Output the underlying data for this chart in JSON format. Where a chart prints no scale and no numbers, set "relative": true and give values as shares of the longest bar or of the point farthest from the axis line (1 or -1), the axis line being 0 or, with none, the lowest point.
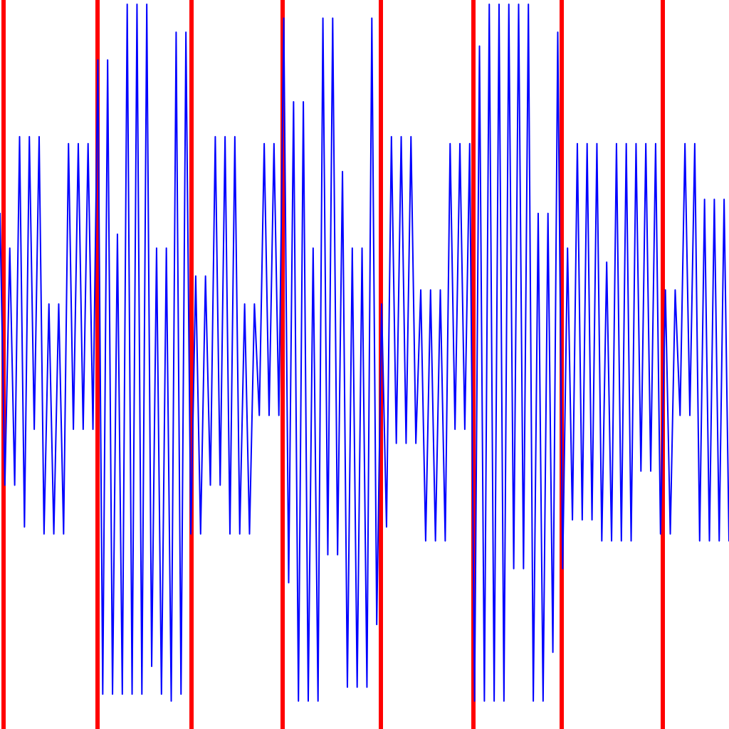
{
  "chart_data": {
    "type": "line",
    "relative": true,
    "categories": [
      null,
      null,
      null,
      null,
      null,
      null,
      null,
      null,
      null,
      null,
      null,
      null,
      null,
      null,
      null,
      null,
      null,
      null,
      null,
      null,
      null,
      null,
      null,
      null,
      null,
      null,
      null,
      null,
      null,
      null,
      null,
      null,
      null,
      null,
      null,
      null,
      null,
      null,
      null,
      null,
      null,
      null,
      null,
      null,
      null,
      null,
      null,
      null,
      null,
      null,
      null,
      null,
      null,
      null,
      null,
      null,
      null,
      null,
      null,
      null,
      null,
      null,
      null,
      null,
      null,
      null,
      null,
      null,
      null,
      null,
      null,
      null,
      null,
      null,
      null,
      null,
      null,
      null,
      null,
      null,
      null,
      null,
      null,
      null,
      null,
      null,
      null,
      null,
      null,
      null,
      null,
      null,
      null,
      null,
      null,
      null,
      null,
      null,
      null,
      null,
      null,
      null,
      null,
      null,
      null,
      null,
      null,
      null,
      null,
      null,
      null,
      null,
      null,
      null,
      null,
      null,
      null,
      null,
      null,
      null,
      null,
      null,
      null,
      null,
      null,
      null,
      null,
      null,
      null,
      null,
      null,
      null,
      null,
      null,
      null,
      null,
      null,
      null,
      null,
      null,
      null,
      null,
      null,
      null,
      null,
      null,
      null,
      null,
      null,
      null
    ],
    "series": [
      {
        "color": "#0000ff",
        "values": [
          0.7,
          0.31,
          0.65,
          0.31,
          0.81,
          0.25,
          0.81,
          0.39,
          0.81,
          0.24,
          0.57,
          0.24,
          0.57,
          0.24,
          0.8,
          0.39,
          0.8,
          0.39,
          0.8,
          0.39,
          0.92,
          0.01,
          0.92,
          0.01,
          0.67,
          0.01,
          1.0,
          0.01,
          1.0,
          0.01,
          1.0,
          0.05,
          0.65,
          0.01,
          0.65,
          0.0,
          0.96,
          0.01,
          0.96,
          0.24,
          0.61,
          0.24,
          0.61,
          0.31,
          0.81,
          0.31,
          0.81,
          0.24,
          0.81,
          0.24,
          0.57,
          0.24,
          0.57,
          0.41,
          0.8,
          0.41,
          0.8,
          0.41,
          0.98,
          0.17,
          0.86,
          0.0,
          0.86,
          0.0,
          0.65,
          0.0,
          0.98,
          0.21,
          0.98,
          0.21,
          0.76,
          0.02,
          0.65,
          0.02,
          0.65,
          0.02,
          0.98,
          0.11,
          0.57,
          0.25,
          0.81,
          0.37,
          0.81,
          0.37,
          0.81,
          0.37,
          0.59,
          0.23,
          0.59,
          0.23,
          0.59,
          0.23,
          0.8,
          0.39,
          0.8,
          0.39,
          0.8,
          0.0,
          0.94,
          0.0,
          1.0,
          0.0,
          1.0,
          0.0,
          1.0,
          0.19,
          1.0,
          0.19,
          1.0,
          0.0,
          0.7,
          0.0,
          0.7,
          0.07,
          0.96,
          0.19,
          0.65,
          0.26,
          0.8,
          0.26,
          0.8,
          0.26,
          0.8,
          0.23,
          0.63,
          0.23,
          0.8,
          0.23,
          0.8,
          0.23,
          0.8,
          0.33,
          0.8,
          0.33,
          0.8,
          0.24,
          0.59,
          0.24,
          0.59,
          0.41,
          0.8,
          0.41,
          0.8,
          0.23,
          0.72,
          0.23,
          0.72,
          0.23,
          0.72,
          0.23
        ]
      }
    ]
  }
}
